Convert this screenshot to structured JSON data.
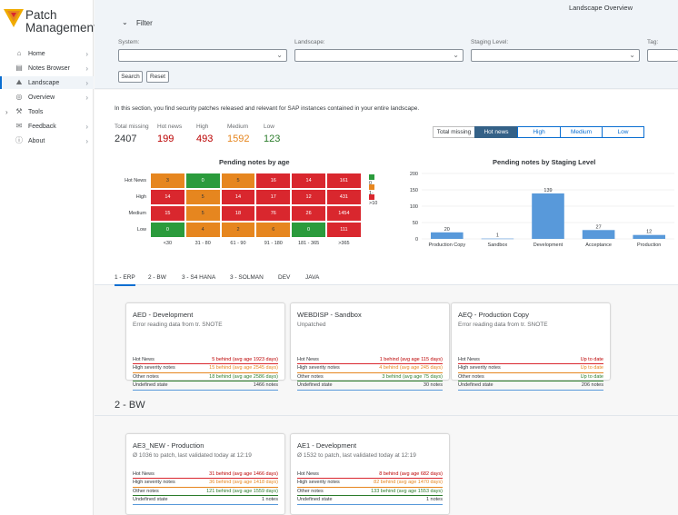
{
  "app": {
    "name_line1": "Patch",
    "name_line2": "Management",
    "header_title": "Landscape Overview"
  },
  "nav": [
    {
      "label": "Home",
      "icon": "home-icon",
      "glyph": "⌂"
    },
    {
      "label": "Notes Browser",
      "icon": "notes-icon",
      "glyph": "▤"
    },
    {
      "label": "Landscape",
      "icon": "landscape-icon",
      "glyph": "⛰"
    },
    {
      "label": "Overview",
      "icon": "globe-icon",
      "glyph": "◎"
    },
    {
      "label": "Tools",
      "icon": "wrench-icon",
      "glyph": "⚒"
    },
    {
      "label": "Feedback",
      "icon": "feedback-icon",
      "glyph": "✉"
    },
    {
      "label": "About",
      "icon": "info-icon",
      "glyph": "ⓘ"
    }
  ],
  "filter": {
    "title": "Filter",
    "system_label": "System:",
    "landscape_label": "Landscape:",
    "staging_label": "Staging Level:",
    "tag_label": "Tag:",
    "search_button": "Search",
    "reset_button": "Reset"
  },
  "intro": "In this section, you find security patches released and relevant for SAP instances contained in your entire landscape.",
  "kpis": [
    {
      "label": "Total missing",
      "value": "2407",
      "color": "#32363a"
    },
    {
      "label": "Hot news",
      "value": "199",
      "color": "#bb0000"
    },
    {
      "label": "High",
      "value": "493",
      "color": "#bb0000"
    },
    {
      "label": "Medium",
      "value": "1592",
      "color": "#e6861f"
    },
    {
      "label": "Low",
      "value": "123",
      "color": "#2b7c2b"
    }
  ],
  "segments": [
    "Total missing",
    "Hot news",
    "High",
    "Medium",
    "Low"
  ],
  "chart_data": [
    {
      "type": "heatmap",
      "title": "Pending notes by age",
      "rows": [
        "Hot News",
        "High",
        "Medium",
        "Low"
      ],
      "columns": [
        "<30",
        "31 - 80",
        "61 - 90",
        "91 - 180",
        "181 - 365",
        ">365"
      ],
      "values": [
        [
          3,
          0,
          5,
          16,
          14,
          161
        ],
        [
          14,
          5,
          14,
          17,
          12,
          431
        ],
        [
          15,
          5,
          18,
          76,
          26,
          1454
        ],
        [
          0,
          4,
          2,
          6,
          0,
          111
        ]
      ],
      "color_classes": [
        [
          "orange",
          "green",
          "orange",
          "red",
          "red",
          "red"
        ],
        [
          "red",
          "orange",
          "red",
          "red",
          "red",
          "red"
        ],
        [
          "red",
          "orange",
          "red",
          "red",
          "red",
          "red"
        ],
        [
          "green",
          "orange",
          "orange",
          "orange",
          "green",
          "red"
        ]
      ],
      "legend": [
        {
          "label": "0",
          "color": "#2b9b3c"
        },
        {
          "label": "1-10",
          "color": "#e6861f"
        },
        {
          "label": ">10",
          "color": "#d9272e"
        }
      ]
    },
    {
      "type": "bar",
      "title": "Pending notes by Staging Level",
      "categories": [
        "Production Copy",
        "Sandbox",
        "Development",
        "Acceptance",
        "Production"
      ],
      "values": [
        20,
        1,
        139,
        27,
        12
      ],
      "ylim": [
        0,
        200
      ],
      "yticks": [
        0,
        50,
        100,
        150,
        200
      ],
      "color": "#5899da"
    }
  ],
  "tabs": [
    "1 - ERP",
    "2 - BW",
    "3 - S4 HANA",
    "3 - SOLMAN",
    "DEV",
    "JAVA"
  ],
  "section2_title": "2 - BW",
  "cards": [
    {
      "title": "AED - Development",
      "subtitle": "Error reading data from tr. SNOTE",
      "rows": [
        {
          "label": "Hot News",
          "value": "5 behind (avg age 1923 days)",
          "line": "red",
          "vcolor": "red"
        },
        {
          "label": "High severity notes",
          "value": "15 behind (avg age 2545 days)",
          "line": "orange",
          "vcolor": "orange"
        },
        {
          "label": "Other notes",
          "value": "18 behind (avg age 2586 days)",
          "line": "green",
          "vcolor": "green"
        },
        {
          "label": "Undefined state",
          "value": "1466 notes",
          "line": "blue",
          "vcolor": "dark"
        }
      ]
    },
    {
      "title": "WEBDISP - Sandbox",
      "subtitle": "Unpatched",
      "rows": [
        {
          "label": "Hot News",
          "value": "1 behind (avg age 115 days)",
          "line": "red",
          "vcolor": "red"
        },
        {
          "label": "High severity notes",
          "value": "4 behind (avg age 245 days)",
          "line": "orange",
          "vcolor": "orange"
        },
        {
          "label": "Other notes",
          "value": "3 behind (avg age 75 days)",
          "line": "green",
          "vcolor": "green"
        },
        {
          "label": "Undefined state",
          "value": "30 notes",
          "line": "blue",
          "vcolor": "dark"
        }
      ]
    },
    {
      "title": "AEQ - Production Copy",
      "subtitle": "Error reading data from tr. SNOTE",
      "rows": [
        {
          "label": "Hot News",
          "value": "Up to date",
          "line": "red",
          "vcolor": "red"
        },
        {
          "label": "High severity notes",
          "value": "Up to date",
          "line": "orange",
          "vcolor": "orange"
        },
        {
          "label": "Other notes",
          "value": "Up to date",
          "line": "green",
          "vcolor": "green"
        },
        {
          "label": "Undefined state",
          "value": "206 notes",
          "line": "blue",
          "vcolor": "dark"
        }
      ]
    },
    {
      "title": "AE3_NEW - Production",
      "subtitle": "Ø 1036 to patch, last validated today at 12:19",
      "rows": [
        {
          "label": "Hot News",
          "value": "31 behind (avg age 1466 days)",
          "line": "red",
          "vcolor": "red"
        },
        {
          "label": "High severity notes",
          "value": "36 behind (avg age 1418 days)",
          "line": "orange",
          "vcolor": "orange"
        },
        {
          "label": "Other notes",
          "value": "121 behind (avg age 1559 days)",
          "line": "green",
          "vcolor": "green"
        },
        {
          "label": "Undefined state",
          "value": "1 notes",
          "line": "blue",
          "vcolor": "dark"
        }
      ]
    },
    {
      "title": "AE1 - Development",
      "subtitle": "Ø 1532 to patch, last validated today at 12:19",
      "rows": [
        {
          "label": "Hot News",
          "value": "8 behind (avg age 682 days)",
          "line": "red",
          "vcolor": "red"
        },
        {
          "label": "High severity notes",
          "value": "82 behind (avg age 1470 days)",
          "line": "orange",
          "vcolor": "orange"
        },
        {
          "label": "Other notes",
          "value": "133 behind (avg age 1553 days)",
          "line": "green",
          "vcolor": "green"
        },
        {
          "label": "Undefined state",
          "value": "1 notes",
          "line": "blue",
          "vcolor": "dark"
        }
      ]
    }
  ]
}
